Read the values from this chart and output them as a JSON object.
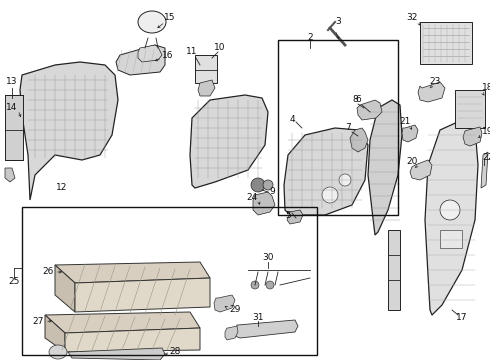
{
  "background_color": "#ffffff",
  "fig_width": 4.9,
  "fig_height": 3.6,
  "dpi": 100
}
